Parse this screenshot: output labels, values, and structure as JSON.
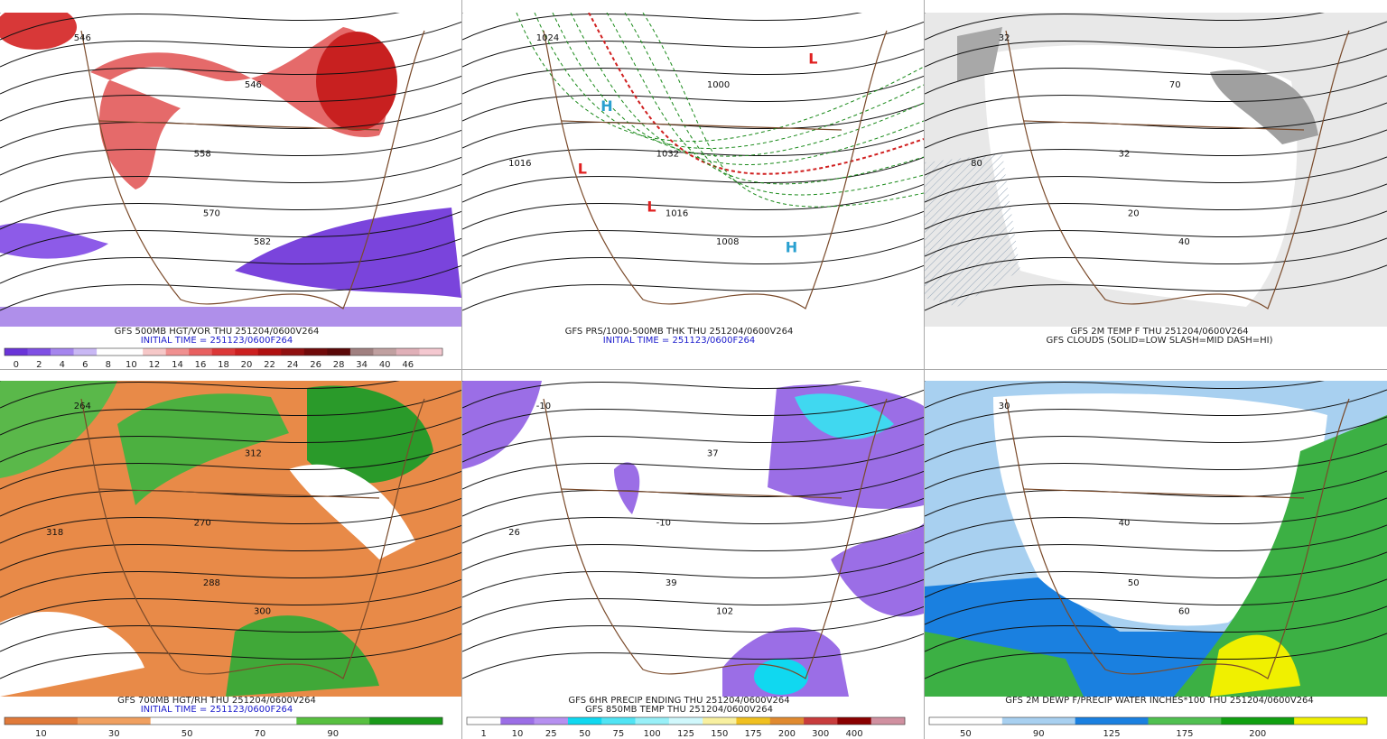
{
  "panels": [
    {
      "titles": [
        "GFS 500MB HGT/VOR THU 251204/0600V264"
      ],
      "subtitle": "INITIAL TIME = 251123/0600F264",
      "colorbar": {
        "colors": [
          "#6a34d8",
          "#7f4fe4",
          "#a585ee",
          "#c9b8f4",
          "#ffffff",
          "#ffffff",
          "#f6c8c8",
          "#f09090",
          "#e86060",
          "#dc3838",
          "#cc2020",
          "#b01010",
          "#901010",
          "#700a0a",
          "#5a0808",
          "#a08080",
          "#c0a0a0",
          "#e0b0b8",
          "#f4c8d0"
        ],
        "labels": [
          0,
          2,
          4,
          6,
          8,
          10,
          12,
          14,
          16,
          18,
          20,
          22,
          24,
          26,
          28,
          34,
          40,
          46
        ]
      },
      "map_labels": [
        "546",
        "558",
        "570",
        "582",
        "546"
      ]
    },
    {
      "titles": [
        "GFS PRS/1000-500MB THK THU 251204/0600V264"
      ],
      "subtitle": "INITIAL TIME = 251123/0600F264",
      "map_labels": [
        "1024",
        "1032",
        "1016",
        "1008",
        "1000",
        "1016",
        "H",
        "H",
        "L",
        "L",
        "L"
      ]
    },
    {
      "titles": [
        "GFS 2M TEMP F THU 251204/0600V264",
        "GFS CLOUDS (SOLID=LOW SLASH=MID DASH=HI)"
      ],
      "map_labels": [
        "32",
        "32",
        "20",
        "40",
        "70",
        "80"
      ]
    },
    {
      "titles": [
        "GFS 700MB HGT/RH THU 251204/0600V264"
      ],
      "subtitle": "INITIAL TIME = 251123/0600F264",
      "colorbar": {
        "colors": [
          "#e07a3a",
          "#f0a060",
          "#ffffff",
          "#ffffff",
          "#58c040",
          "#1a9a1a"
        ],
        "labels": [
          10,
          30,
          50,
          70,
          90
        ]
      },
      "map_labels": [
        "264",
        "270",
        "288",
        "300",
        "312",
        "318"
      ]
    },
    {
      "titles": [
        "GFS 6HR PRECIP ENDING THU 251204/0600V264",
        "GFS 850MB TEMP THU 251204/0600V264"
      ],
      "colorbar": {
        "colors": [
          "#ffffff",
          "#9b6ee6",
          "#b690f0",
          "#10d8f0",
          "#50e4f4",
          "#98f0f8",
          "#d0f8fc",
          "#f8f0a0",
          "#f0c020",
          "#e08a30",
          "#c83c3c",
          "#8a0000",
          "#d090a0"
        ],
        "labels": [
          1,
          10,
          25,
          50,
          75,
          100,
          125,
          150,
          175,
          200,
          300,
          400
        ]
      },
      "map_labels": [
        "-10",
        "-10",
        "39",
        "102",
        "37",
        "26"
      ]
    },
    {
      "titles": [
        "GFS 2M DEWP F/PRECIP WATER INCHES*100 THU 251204/0600V264"
      ],
      "colorbar": {
        "colors": [
          "#ffffff",
          "#a8d0f0",
          "#1a80e0",
          "#50c050",
          "#10a010",
          "#f0f000"
        ],
        "labels": [
          50,
          90,
          125,
          175,
          200
        ]
      },
      "map_labels": [
        "30",
        "40",
        "50",
        "60"
      ]
    }
  ]
}
